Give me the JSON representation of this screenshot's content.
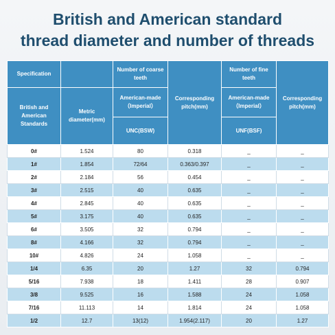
{
  "header": {
    "title_line1": "British and American standard",
    "title_line2": "thread diameter and number of threads"
  },
  "table": {
    "head": {
      "specification": "Specification",
      "coarse": "Number of coarse teeth",
      "pitch_coarse": "Corresponding pitch(mm)",
      "fine": "Number of fine teeth",
      "pitch_fine": "Corresponding pitch(mm)",
      "standards": "British and American Standards",
      "metric": "Metric diameter(mm)",
      "imperial_coarse": "American-made（Imperial）",
      "imperial_fine": "American-made（Imperial）",
      "unc": "UNC(BSW)",
      "unf": "UNF(BSF)"
    },
    "rows": [
      [
        "0#",
        "1.524",
        "80",
        "0.318",
        "_",
        "_"
      ],
      [
        "1#",
        "1.854",
        "72/64",
        "0.363/0.397",
        "_",
        "_"
      ],
      [
        "2#",
        "2.184",
        "56",
        "0.454",
        "_",
        "_"
      ],
      [
        "3#",
        "2.515",
        "40",
        "0.635",
        "_",
        "_"
      ],
      [
        "4#",
        "2.845",
        "40",
        "0.635",
        "_",
        "_"
      ],
      [
        "5#",
        "3.175",
        "40",
        "0.635",
        "_",
        "_"
      ],
      [
        "6#",
        "3.505",
        "32",
        "0.794",
        "_",
        "_"
      ],
      [
        "8#",
        "4.166",
        "32",
        "0.794",
        "_",
        "_"
      ],
      [
        "10#",
        "4.826",
        "24",
        "1.058",
        "_",
        "_"
      ],
      [
        "1/4",
        "6.35",
        "20",
        "1.27",
        "32",
        "0.794"
      ],
      [
        "5/16",
        "7.938",
        "18",
        "1.411",
        "28",
        "0.907"
      ],
      [
        "3/8",
        "9.525",
        "16",
        "1.588",
        "24",
        "1.058"
      ],
      [
        "7/16",
        "11.113",
        "14",
        "1.814",
        "24",
        "1.058"
      ],
      [
        "1/2",
        "12.7",
        "13(12)",
        "1.954(2.117)",
        "20",
        "1.27"
      ]
    ]
  }
}
